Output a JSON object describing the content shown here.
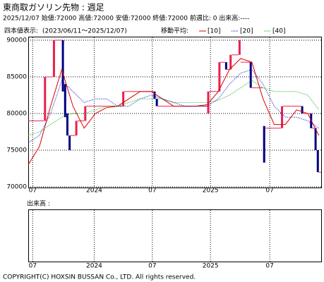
{
  "chart_data": {
    "type": "candlestick",
    "title": "東商取ガソリン先物 :  週足",
    "info": "2025/12/07 始値:72000 高値:72000 安値:72000 終値:72000 前週比: 0 出来高:----",
    "display_label": "四本値表示:",
    "period": "(2023/06/11〜2025/12/07)",
    "ma_label": "移動平均:",
    "volume_label": "出来高  :",
    "copyright": "COPYRIGHT(C) HOXSIN BUSSAN Co., LTD. All rights reserved.",
    "up_color": "#e8204c",
    "down_color": "#000080",
    "xlim": [
      0,
      131
    ],
    "xticks": [
      {
        "value": 2,
        "label": "07"
      },
      {
        "value": 29.5,
        "label": "2024"
      },
      {
        "value": 55.5,
        "label": "07"
      },
      {
        "value": 81.5,
        "label": "2025"
      },
      {
        "value": 108,
        "label": "07"
      }
    ],
    "ylim": [
      70000,
      90000
    ],
    "yticks": [
      70000,
      75000,
      80000,
      85000,
      90000
    ],
    "grid": true,
    "open": [
      79000,
      79000,
      79000,
      79000,
      79000,
      79000,
      79000,
      79000,
      85000,
      85000,
      85000,
      85000,
      90000,
      90000,
      90000,
      90000,
      84000,
      80000,
      77000,
      77000,
      77000,
      77000,
      79000,
      79000,
      79000,
      79000,
      81000,
      81000,
      81000,
      81000,
      81000,
      81000,
      81000,
      81000,
      81000,
      81000,
      81000,
      81000,
      81000,
      81000,
      81000,
      81000,
      81000,
      83000,
      83000,
      83000,
      83000,
      83000,
      83000,
      83000,
      83000,
      83000,
      83000,
      83000,
      83000,
      83000,
      83000,
      82000,
      81000,
      81000,
      81000,
      81000,
      81000,
      81000,
      81000,
      81000,
      81000,
      81000,
      81000,
      81000,
      81000,
      81000,
      81000,
      81000,
      81000,
      81000,
      81000,
      81000,
      81000,
      81000,
      80000,
      83000,
      83000,
      83000,
      83000,
      83000,
      87000,
      87000,
      87000,
      86000,
      86000,
      88000,
      88000,
      88000,
      88000,
      87000,
      87000,
      87000,
      87000,
      87000,
      83500,
      83500,
      83500,
      83500,
      83500,
      78300,
      78000,
      78000,
      78000,
      78000,
      78000,
      78000,
      78000,
      78000,
      81000,
      81000,
      81000,
      81000,
      81000,
      81000,
      81000,
      81000,
      81000,
      80000,
      80000,
      80000,
      80000,
      78000,
      78000,
      75000,
      72000
    ],
    "close": [
      79000,
      79000,
      79000,
      79000,
      79000,
      79000,
      79000,
      85000,
      85000,
      85000,
      85000,
      90000,
      90000,
      90000,
      90000,
      83000,
      79500,
      77000,
      75000,
      77000,
      77000,
      79000,
      79000,
      79000,
      79000,
      81000,
      81000,
      81000,
      81000,
      81000,
      81000,
      81000,
      81000,
      81000,
      81000,
      81000,
      81000,
      81000,
      81000,
      81000,
      81000,
      81000,
      83000,
      83000,
      83000,
      83000,
      83000,
      83000,
      83000,
      83000,
      83000,
      83000,
      83000,
      83000,
      83000,
      83000,
      82000,
      81000,
      81000,
      81000,
      81000,
      81000,
      81000,
      81000,
      81000,
      81000,
      81000,
      81000,
      81000,
      81000,
      81000,
      81000,
      81000,
      81000,
      81000,
      81000,
      81000,
      81000,
      81000,
      81000,
      83000,
      83000,
      83000,
      83000,
      83000,
      87000,
      87000,
      87000,
      86000,
      86000,
      88000,
      88000,
      88000,
      88000,
      90000,
      87000,
      87000,
      87000,
      87000,
      83500,
      83500,
      83500,
      83500,
      83500,
      83500,
      73300,
      78000,
      78000,
      78000,
      78000,
      78000,
      78000,
      78000,
      81000,
      81000,
      81000,
      81000,
      81000,
      81000,
      81000,
      81000,
      81000,
      80000,
      80000,
      80000,
      80000,
      78000,
      78000,
      75000,
      72000,
      72000
    ],
    "ma_x": [
      0,
      5,
      10,
      15,
      20,
      25,
      30,
      35,
      40,
      45,
      50,
      55,
      60,
      65,
      70,
      75,
      80,
      85,
      90,
      95,
      100,
      105,
      110,
      115,
      120,
      125,
      130
    ],
    "series": [
      {
        "name": "[10]",
        "color": "#e00000",
        "style": "solid",
        "values": [
          73000,
          75500,
          81000,
          86000,
          81000,
          78000,
          80000,
          80800,
          81000,
          82000,
          83000,
          83000,
          82000,
          81000,
          81000,
          81000,
          81200,
          83000,
          86000,
          87500,
          87000,
          82000,
          78500,
          78500,
          80500,
          80000,
          77000
        ]
      },
      {
        "name": "[20]",
        "color": "#0000d0",
        "style": "dotted",
        "values": [
          76000,
          77000,
          80000,
          84500,
          83000,
          81500,
          82000,
          82000,
          81000,
          81000,
          82000,
          82500,
          82000,
          81500,
          81000,
          81000,
          81000,
          82000,
          84000,
          85500,
          86000,
          84000,
          81000,
          79500,
          79500,
          79000,
          78000
        ]
      },
      {
        "name": "[40]",
        "color": "#00b000",
        "style": "dotted",
        "values": [
          77000,
          77500,
          78500,
          79500,
          80000,
          80000,
          80500,
          81000,
          81000,
          81500,
          82000,
          82000,
          82000,
          81500,
          81500,
          81500,
          81500,
          81800,
          82500,
          83500,
          84500,
          83500,
          83000,
          83000,
          83000,
          82500,
          80500
        ]
      }
    ]
  }
}
